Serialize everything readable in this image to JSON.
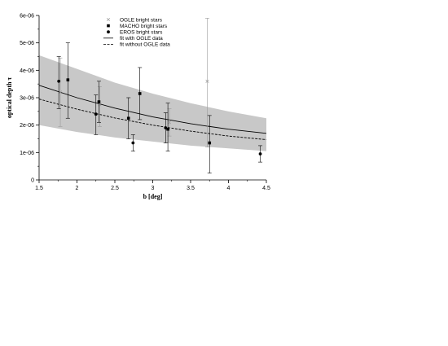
{
  "chart_data": {
    "type": "scatter",
    "title": "",
    "xlabel": "b [deg]",
    "ylabel": "optical depth τ",
    "xlim": [
      1.5,
      4.5
    ],
    "ylim": [
      0,
      6e-06
    ],
    "x_ticks": [
      1.5,
      2,
      2.5,
      3,
      3.5,
      4,
      4.5
    ],
    "x_tick_labels": [
      "1.5",
      "2",
      "2.5",
      "3",
      "3.5",
      "4",
      "4.5"
    ],
    "y_ticks": [
      0,
      1e-06,
      2e-06,
      3e-06,
      4e-06,
      5e-06,
      6e-06
    ],
    "y_tick_labels": [
      "0",
      "1e-06",
      "2e-06",
      "3e-06",
      "4e-06",
      "5e-06",
      "6e-06"
    ],
    "grid": false,
    "legend_position": "top-center",
    "series": [
      {
        "name": "OGLE bright stars",
        "kind": "points",
        "marker": "cross",
        "color": "#9a9a9a",
        "points": [
          {
            "x": 1.78,
            "y": 3.2e-06,
            "ylo": 1.95e-06,
            "yhi": 4.45e-06
          },
          {
            "x": 2.3,
            "y": 2.75e-06,
            "ylo": 1.95e-06,
            "yhi": 3.4e-06
          },
          {
            "x": 3.22,
            "y": 2.1e-06,
            "ylo": 1.6e-06,
            "yhi": 2.6e-06
          },
          {
            "x": 3.72,
            "y": 3.6e-06,
            "ylo": 1.2e-06,
            "yhi": 5.9e-06
          }
        ]
      },
      {
        "name": "MACHO bright stars",
        "kind": "points",
        "marker": "square",
        "color": "#000000",
        "points": [
          {
            "x": 1.88,
            "y": 3.65e-06,
            "ylo": 2.25e-06,
            "yhi": 5e-06
          },
          {
            "x": 2.29,
            "y": 2.85e-06,
            "ylo": 2.1e-06,
            "yhi": 3.6e-06
          },
          {
            "x": 2.68,
            "y": 2.25e-06,
            "ylo": 1.5e-06,
            "yhi": 3e-06
          },
          {
            "x": 2.83,
            "y": 3.15e-06,
            "ylo": 2.2e-06,
            "yhi": 4.1e-06
          },
          {
            "x": 3.2,
            "y": 1.85e-06,
            "ylo": 1.05e-06,
            "yhi": 2.8e-06
          },
          {
            "x": 3.75,
            "y": 1.35e-06,
            "ylo": 2.5e-07,
            "yhi": 2.35e-06
          }
        ]
      },
      {
        "name": "EROS bright stars",
        "kind": "points",
        "marker": "circle",
        "color": "#000000",
        "points": [
          {
            "x": 1.76,
            "y": 3.6e-06,
            "ylo": 2.6e-06,
            "yhi": 4.5e-06
          },
          {
            "x": 2.25,
            "y": 2.4e-06,
            "ylo": 1.65e-06,
            "yhi": 3.1e-06
          },
          {
            "x": 2.74,
            "y": 1.35e-06,
            "ylo": 1.05e-06,
            "yhi": 1.65e-06
          },
          {
            "x": 3.17,
            "y": 1.9e-06,
            "ylo": 1.35e-06,
            "yhi": 2.45e-06
          },
          {
            "x": 4.42,
            "y": 9.5e-07,
            "ylo": 6.5e-07,
            "yhi": 1.25e-06
          }
        ]
      },
      {
        "name": "fit with OGLE data",
        "kind": "line",
        "style": "solid",
        "color": "#000000",
        "x": [
          1.5,
          2.0,
          2.5,
          3.0,
          3.5,
          4.0,
          4.5
        ],
        "y": [
          3.45e-06,
          3e-06,
          2.62e-06,
          2.3e-06,
          2.05e-06,
          1.85e-06,
          1.7e-06
        ]
      },
      {
        "name": "fit without OGLE data",
        "kind": "line",
        "style": "dashed",
        "color": "#000000",
        "x": [
          1.5,
          2.0,
          2.5,
          3.0,
          3.5,
          4.0,
          4.5
        ],
        "y": [
          2.95e-06,
          2.58e-06,
          2.26e-06,
          2e-06,
          1.78e-06,
          1.6e-06,
          1.47e-06
        ]
      }
    ],
    "band": {
      "color": "#c8c8c8",
      "x": [
        1.5,
        2.0,
        2.5,
        3.0,
        3.5,
        4.0,
        4.5
      ],
      "lower": [
        2e-06,
        1.75e-06,
        1.55e-06,
        1.4e-06,
        1.25e-06,
        1.15e-06,
        1.05e-06
      ],
      "upper": [
        4.55e-06,
        4.05e-06,
        3.55e-06,
        3.15e-06,
        2.8e-06,
        2.5e-06,
        2.25e-06
      ]
    }
  }
}
